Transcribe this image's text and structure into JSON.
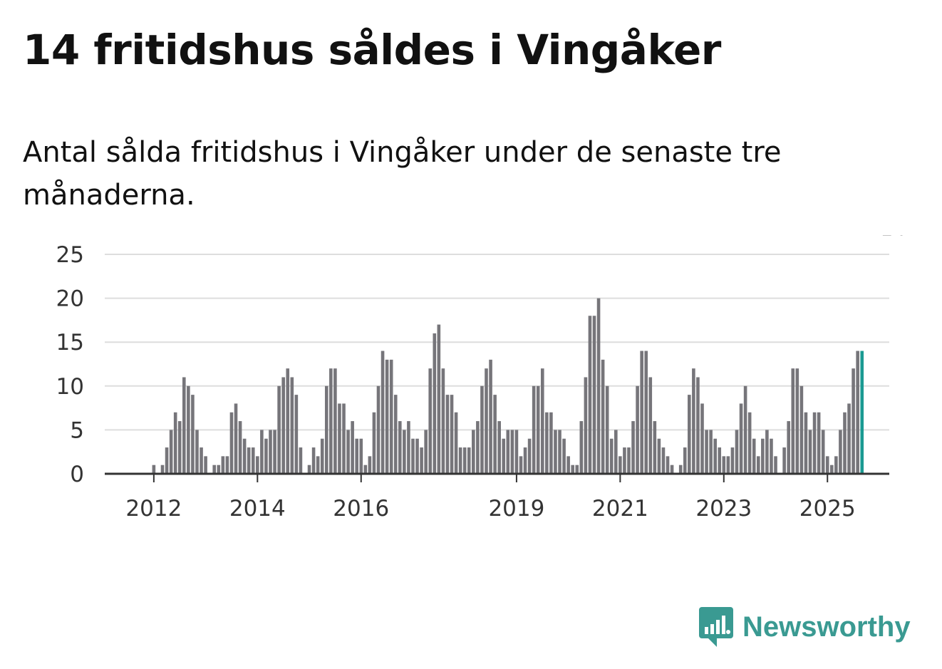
{
  "title": "14 fritidshus såldes i Vingåker",
  "subtitle": "Antal sålda fritidshus i Vingåker under de senaste tre månaderna.",
  "brand": {
    "name": "Newsworthy",
    "icon": "newsworthy-logo-icon",
    "color": "#3a9a92"
  },
  "colors": {
    "bar": "#76757a",
    "highlight": "#1a9a92",
    "grid": "#dddddd",
    "axis": "#333333",
    "text": "#333333"
  },
  "chart_data": {
    "type": "bar",
    "title": "14 fritidshus såldes i Vingåker",
    "xlabel": "",
    "ylabel": "",
    "ylim": [
      0,
      25
    ],
    "yticks": [
      "0",
      "5",
      "10",
      "15",
      "20",
      "25"
    ],
    "xticks": [
      {
        "label": "2012",
        "index": 3
      },
      {
        "label": "2014",
        "index": 27
      },
      {
        "label": "2016",
        "index": 51
      },
      {
        "label": "2019",
        "index": 87
      },
      {
        "label": "2021",
        "index": 111
      },
      {
        "label": "2023",
        "index": 135
      },
      {
        "label": "2025",
        "index": 159
      }
    ],
    "annotation": {
      "index": 174,
      "label": "14"
    },
    "values": [
      0,
      0,
      0,
      1,
      0,
      1,
      3,
      5,
      7,
      6,
      11,
      10,
      9,
      5,
      3,
      2,
      0,
      1,
      1,
      2,
      2,
      7,
      8,
      6,
      4,
      3,
      3,
      2,
      5,
      4,
      5,
      5,
      10,
      11,
      12,
      11,
      9,
      3,
      0,
      1,
      3,
      2,
      4,
      10,
      12,
      12,
      8,
      8,
      5,
      6,
      4,
      4,
      1,
      2,
      7,
      10,
      14,
      13,
      13,
      9,
      6,
      5,
      6,
      4,
      4,
      3,
      5,
      12,
      16,
      17,
      12,
      9,
      9,
      7,
      3,
      3,
      3,
      5,
      6,
      10,
      12,
      13,
      9,
      6,
      4,
      5,
      5,
      5,
      2,
      3,
      4,
      10,
      10,
      12,
      7,
      7,
      5,
      5,
      4,
      2,
      1,
      1,
      6,
      11,
      18,
      18,
      20,
      13,
      10,
      4,
      5,
      2,
      3,
      3,
      6,
      10,
      14,
      14,
      11,
      6,
      4,
      3,
      2,
      1,
      0,
      1,
      3,
      9,
      12,
      11,
      8,
      5,
      5,
      4,
      3,
      2,
      2,
      3,
      5,
      8,
      10,
      7,
      4,
      2,
      4,
      5,
      4,
      2,
      0,
      3,
      6,
      12,
      12,
      10,
      7,
      5,
      7,
      7,
      5,
      2,
      1,
      2,
      5,
      7,
      8,
      12,
      14,
      14
    ]
  }
}
